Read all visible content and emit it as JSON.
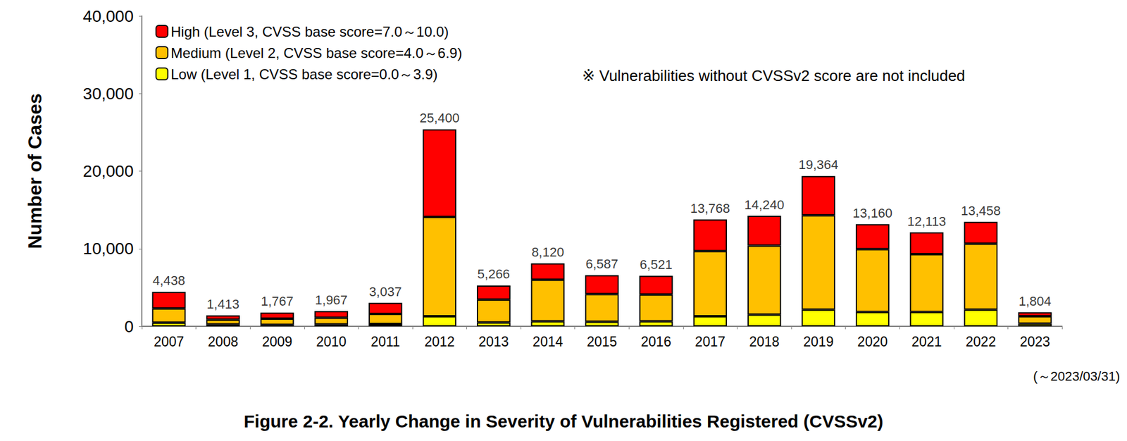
{
  "chart_data": {
    "type": "bar",
    "title": "Figure 2-2. Yearly Change in Severity of Vulnerabilities Registered (CVSSv2)",
    "y_label": "Number of Cases",
    "note": "※ Vulnerabilities without CVSSv2 score are not included",
    "x_note": "(～2023/03/31)",
    "categories": [
      "2007",
      "2008",
      "2009",
      "2010",
      "2011",
      "2012",
      "2013",
      "2014",
      "2015",
      "2016",
      "2017",
      "2018",
      "2019",
      "2020",
      "2021",
      "2022",
      "2023"
    ],
    "series": [
      {
        "name": "Low (Level 1, CVSS base score=0.0～3.9)",
        "color": "#ffff00",
        "values": [
          480,
          250,
          200,
          250,
          300,
          1300,
          500,
          650,
          600,
          650,
          1300,
          1500,
          2150,
          1850,
          1850,
          2150,
          350
        ]
      },
      {
        "name": "Medium (Level 2, CVSS base score=4.0～6.9)",
        "color": "#ffc000",
        "values": [
          1820,
          600,
          800,
          850,
          1300,
          12800,
          2950,
          5350,
          3550,
          3450,
          8400,
          8900,
          12150,
          8100,
          7450,
          8500,
          950
        ]
      },
      {
        "name": "High (Level 3, CVSS base score=7.0～10.0)",
        "color": "#ff0000",
        "values": [
          2138,
          563,
          767,
          867,
          1437,
          11300,
          1816,
          2120,
          2437,
          2421,
          4068,
          3840,
          5064,
          3210,
          2813,
          2808,
          504
        ]
      }
    ],
    "totals": [
      4438,
      1413,
      1767,
      1967,
      3037,
      25400,
      5266,
      8120,
      6587,
      6521,
      13768,
      14240,
      19364,
      13160,
      12113,
      13458,
      1804
    ],
    "total_labels": [
      "4,438",
      "1,413",
      "1,767",
      "1,967",
      "3,037",
      "25,400",
      "5,266",
      "8,120",
      "6,587",
      "6,521",
      "13,768",
      "14,240",
      "19,364",
      "13,160",
      "12,113",
      "13,458",
      "1,804"
    ],
    "ylim": [
      0,
      40000
    ],
    "yticks": [
      0,
      {
        "value": 10000,
        "label": "10,000"
      },
      {
        "value": 20000,
        "label": "20,000"
      },
      {
        "value": 30000,
        "label": "30,000"
      },
      {
        "value": 40000,
        "label": "40,000"
      }
    ],
    "stacked": true,
    "grid": false,
    "legend": "upper left"
  }
}
